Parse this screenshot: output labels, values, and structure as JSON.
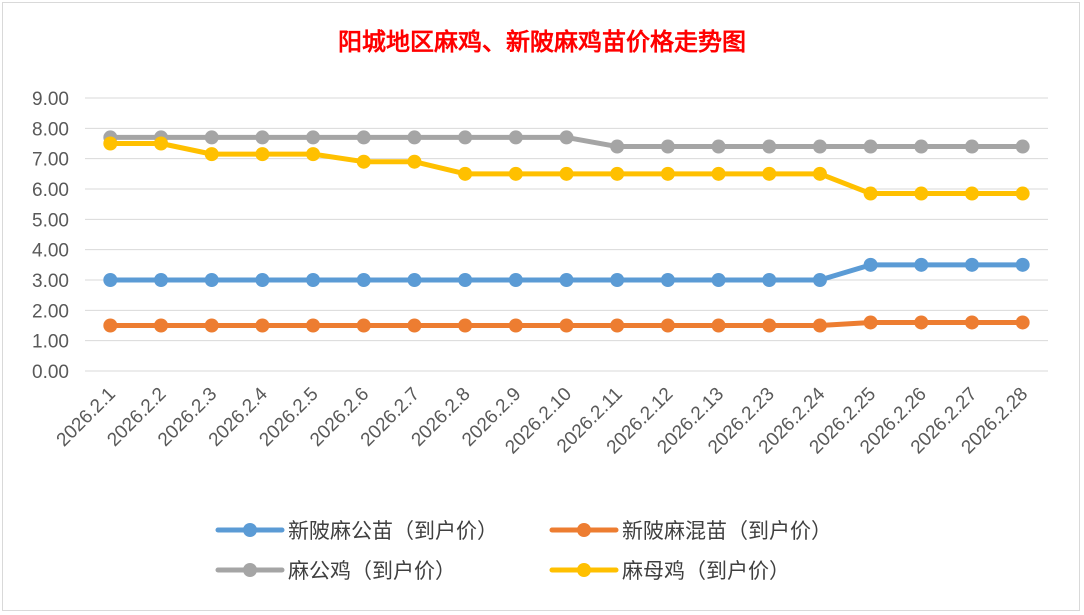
{
  "chart_data": {
    "type": "line",
    "title": "阳城地区麻鸡、新陂麻鸡苗价格走势图",
    "xlabel": "",
    "ylabel": "",
    "ylim": [
      0,
      9
    ],
    "ytick_labels": [
      "0.00",
      "1.00",
      "2.00",
      "3.00",
      "4.00",
      "5.00",
      "6.00",
      "7.00",
      "8.00",
      "9.00"
    ],
    "grid": true,
    "legend_position": "bottom",
    "categories": [
      "2026.2.1",
      "2026.2.2",
      "2026.2.3",
      "2026.2.4",
      "2026.2.5",
      "2026.2.6",
      "2026.2.7",
      "2026.2.8",
      "2026.2.9",
      "2026.2.10",
      "2026.2.11",
      "2026.2.12",
      "2026.2.13",
      "2026.2.23",
      "2026.2.24",
      "2026.2.25",
      "2026.2.26",
      "2026.2.27",
      "2026.2.28"
    ],
    "series": [
      {
        "name": "新陂麻公苗（到户价）",
        "color": "#5b9bd5",
        "values": [
          3.0,
          3.0,
          3.0,
          3.0,
          3.0,
          3.0,
          3.0,
          3.0,
          3.0,
          3.0,
          3.0,
          3.0,
          3.0,
          3.0,
          3.0,
          3.5,
          3.5,
          3.5,
          3.5
        ]
      },
      {
        "name": "新陂麻混苗（到户价）",
        "color": "#ed7d31",
        "values": [
          1.5,
          1.5,
          1.5,
          1.5,
          1.5,
          1.5,
          1.5,
          1.5,
          1.5,
          1.5,
          1.5,
          1.5,
          1.5,
          1.5,
          1.5,
          1.6,
          1.6,
          1.6,
          1.6
        ]
      },
      {
        "name": "麻公鸡（到户价）",
        "color": "#a5a5a5",
        "values": [
          7.7,
          7.7,
          7.7,
          7.7,
          7.7,
          7.7,
          7.7,
          7.7,
          7.7,
          7.7,
          7.4,
          7.4,
          7.4,
          7.4,
          7.4,
          7.4,
          7.4,
          7.4,
          7.4
        ]
      },
      {
        "name": "麻母鸡（到户价）",
        "color": "#ffc000",
        "values": [
          7.5,
          7.5,
          7.15,
          7.15,
          7.15,
          6.9,
          6.9,
          6.5,
          6.5,
          6.5,
          6.5,
          6.5,
          6.5,
          6.5,
          6.5,
          5.85,
          5.85,
          5.85,
          5.85
        ]
      }
    ]
  }
}
